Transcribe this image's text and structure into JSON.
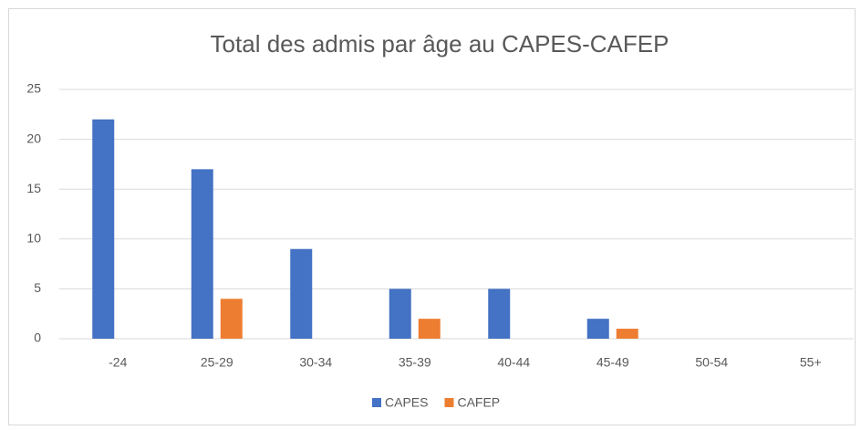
{
  "chart_data": {
    "type": "bar",
    "title": "Total des admis par âge au CAPES-CAFEP",
    "categories": [
      "-24",
      "25-29",
      "30-34",
      "35-39",
      "40-44",
      "45-49",
      "50-54",
      "55+"
    ],
    "series": [
      {
        "name": "CAPES",
        "color": "#4472c4",
        "values": [
          22,
          17,
          9,
          5,
          5,
          2,
          0,
          0
        ]
      },
      {
        "name": "CAFEP",
        "color": "#ed7d31",
        "values": [
          0,
          4,
          0,
          2,
          0,
          1,
          0,
          0
        ]
      }
    ],
    "ylim": [
      0,
      25
    ],
    "yticks": [
      0,
      5,
      10,
      15,
      20,
      25
    ],
    "grid": true,
    "legend": "bottom"
  }
}
